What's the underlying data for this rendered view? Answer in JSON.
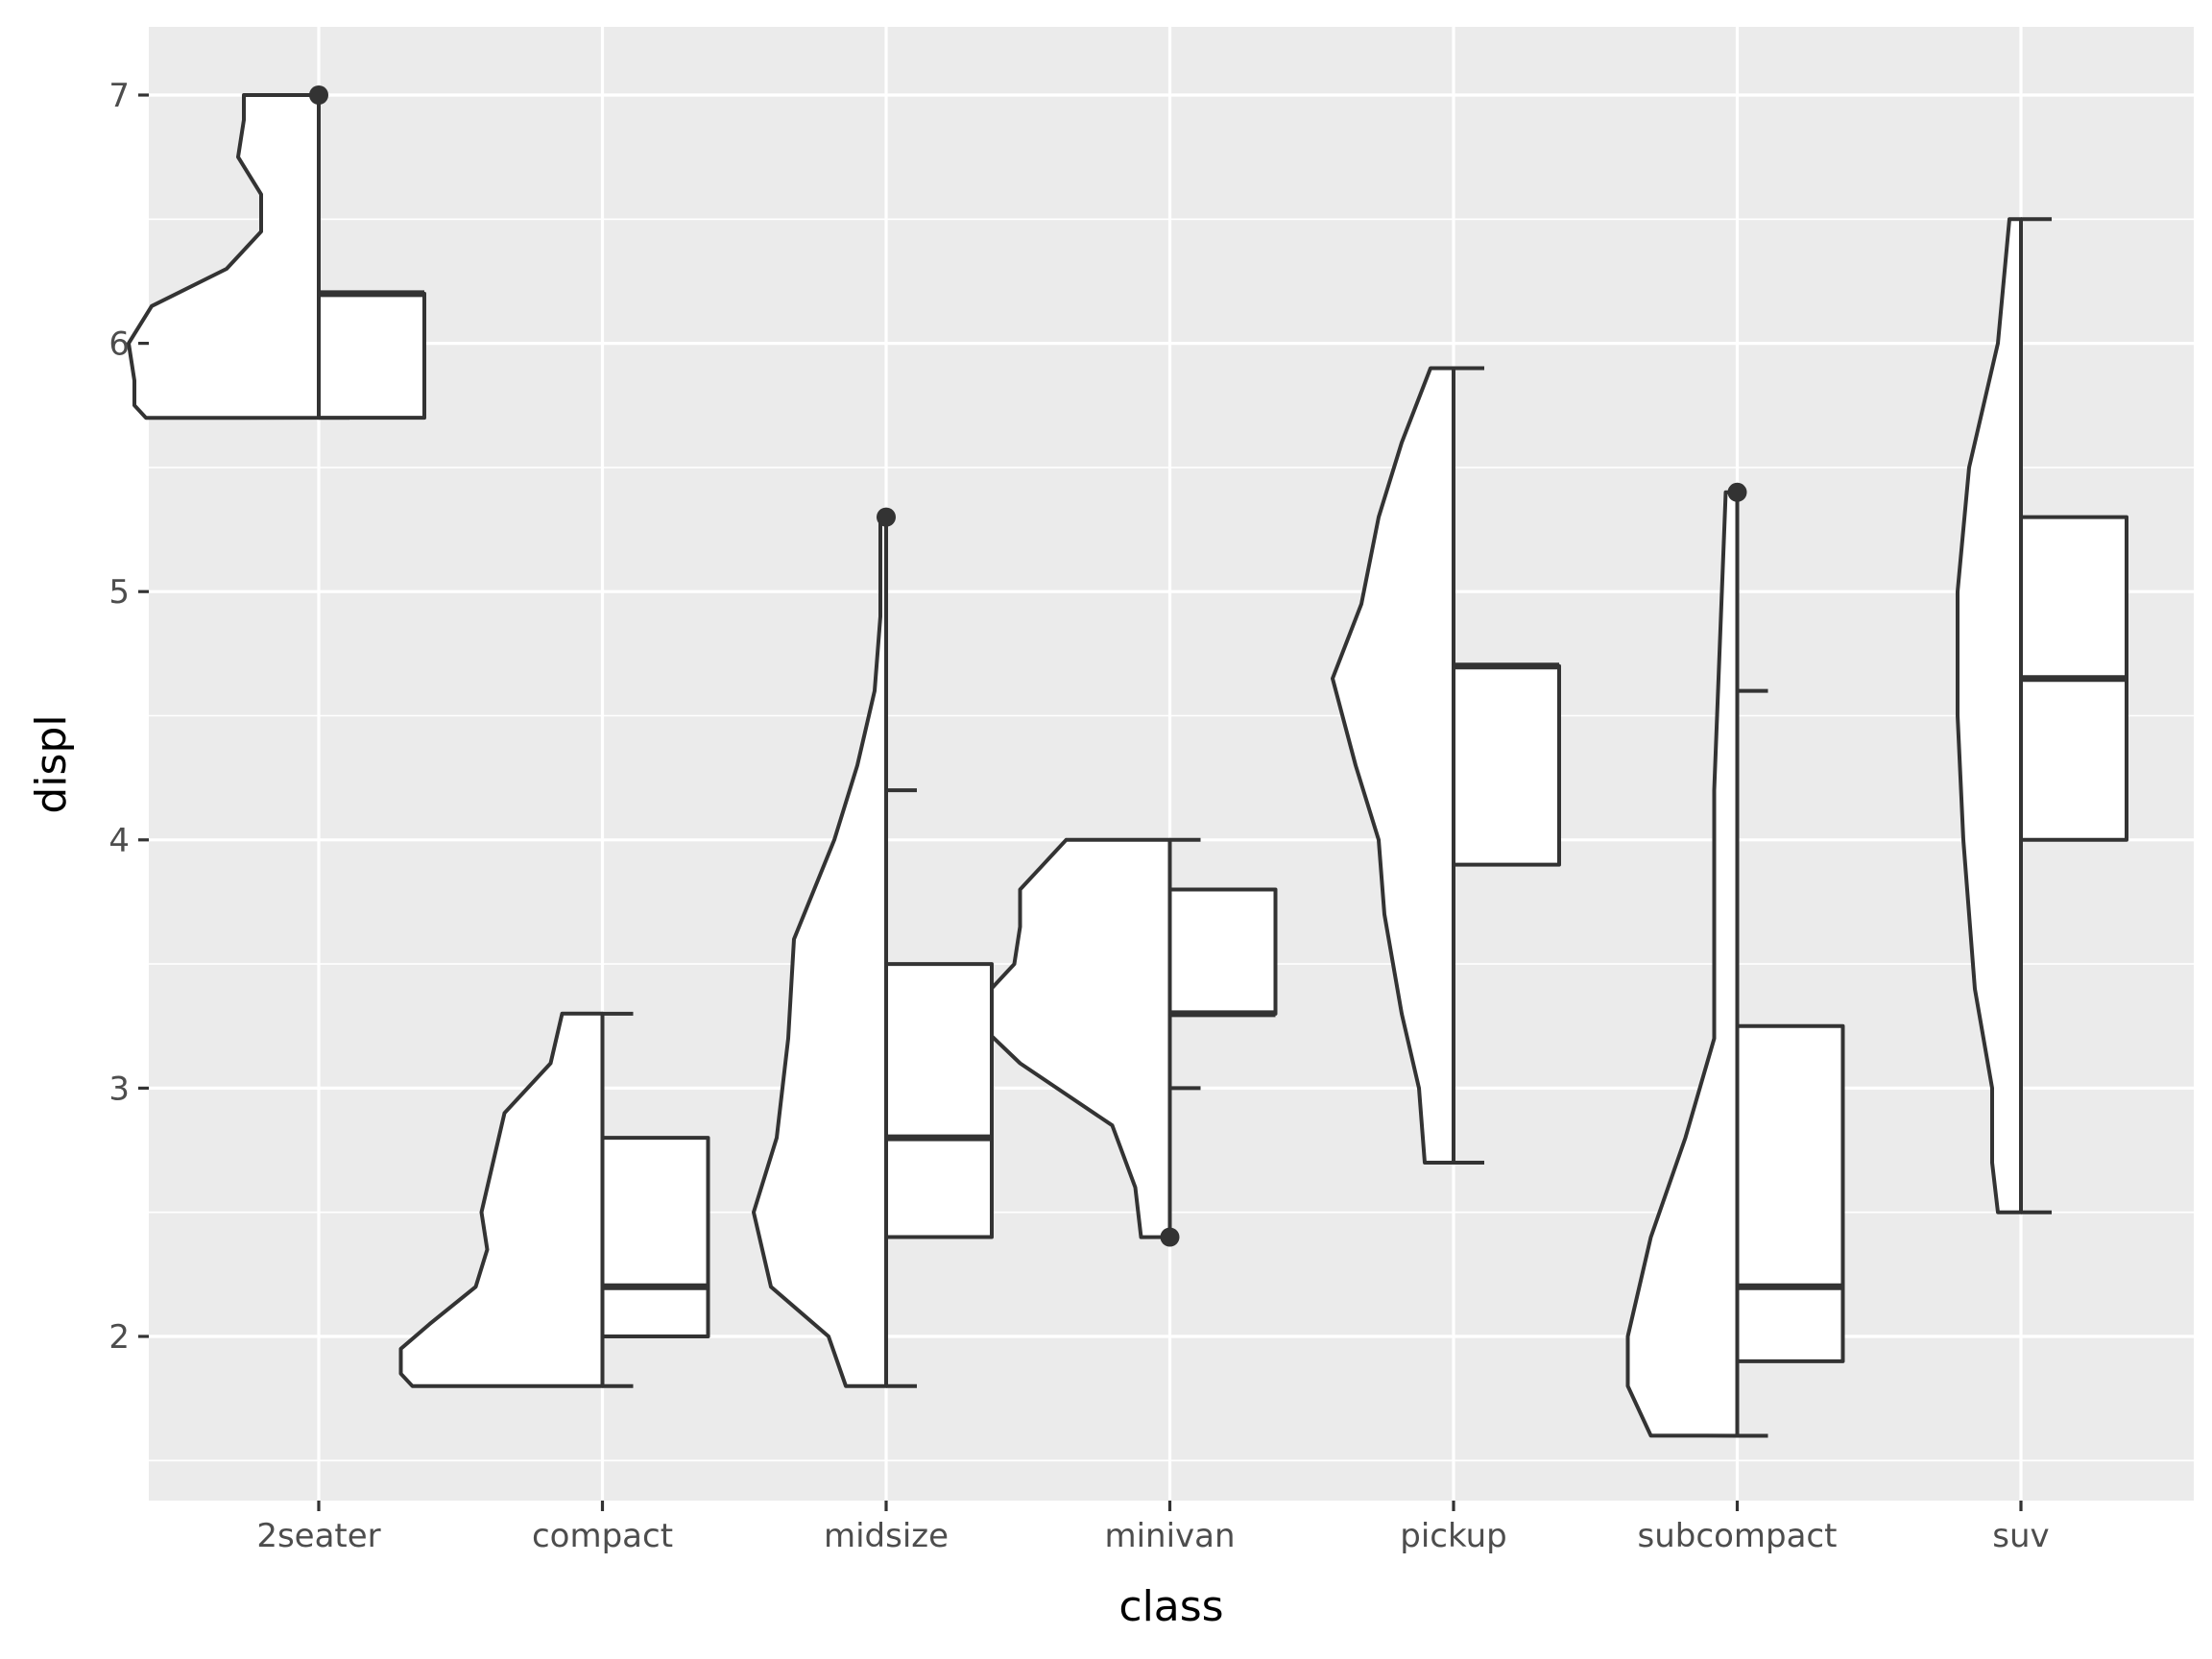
{
  "chart_data": {
    "type": "raincloud",
    "title": "",
    "xlabel": "class",
    "ylabel": "displ",
    "categories": [
      "2seater",
      "compact",
      "midsize",
      "minivan",
      "pickup",
      "subcompact",
      "suv"
    ],
    "ylim": [
      1.44,
      7.3
    ],
    "y_ticks": [
      2,
      3,
      4,
      5,
      6,
      7
    ],
    "y_tick_labels": [
      "2",
      "3",
      "4",
      "5",
      "6",
      "7"
    ],
    "grid": true,
    "background_color": "#ebebeb",
    "line_color": "#333333",
    "fill_color": "#ffffff",
    "boxplots": [
      {
        "category": "2seater",
        "whisker_low": 5.7,
        "q1": 5.7,
        "median": 6.2,
        "q3": 6.2,
        "whisker_high": 6.2,
        "outliers": [
          7.0
        ]
      },
      {
        "category": "compact",
        "whisker_low": 1.8,
        "q1": 2.0,
        "median": 2.2,
        "q3": 2.8,
        "whisker_high": 3.3,
        "outliers": []
      },
      {
        "category": "midsize",
        "whisker_low": 1.8,
        "q1": 2.4,
        "median": 2.8,
        "q3": 3.5,
        "whisker_high": 4.2,
        "outliers": [
          5.3
        ]
      },
      {
        "category": "minivan",
        "whisker_low": 3.0,
        "q1": 3.3,
        "median": 3.3,
        "q3": 3.8,
        "whisker_high": 4.0,
        "outliers": [
          2.4
        ]
      },
      {
        "category": "pickup",
        "whisker_low": 2.7,
        "q1": 3.9,
        "median": 4.7,
        "q3": 4.7,
        "whisker_high": 5.9,
        "outliers": []
      },
      {
        "category": "subcompact",
        "whisker_low": 1.6,
        "q1": 1.9,
        "median": 2.2,
        "q3": 3.25,
        "whisker_high": 4.6,
        "outliers": [
          5.4
        ]
      },
      {
        "category": "suv",
        "whisker_low": 2.5,
        "q1": 4.0,
        "median": 4.65,
        "q3": 5.3,
        "whisker_high": 6.5,
        "outliers": []
      }
    ],
    "half_violins": [
      {
        "category": "2seater",
        "density": [
          [
            5.7,
            0.3
          ],
          [
            5.75,
            0.32
          ],
          [
            5.85,
            0.32
          ],
          [
            6.0,
            0.33
          ],
          [
            6.15,
            0.29
          ],
          [
            6.3,
            0.16
          ],
          [
            6.45,
            0.1
          ],
          [
            6.6,
            0.1
          ],
          [
            6.75,
            0.14
          ],
          [
            6.9,
            0.13
          ],
          [
            7.0,
            0.13
          ]
        ]
      },
      {
        "category": "compact",
        "density": [
          [
            1.8,
            0.33
          ],
          [
            1.85,
            0.35
          ],
          [
            1.95,
            0.35
          ],
          [
            2.05,
            0.3
          ],
          [
            2.2,
            0.22
          ],
          [
            2.35,
            0.2
          ],
          [
            2.5,
            0.21
          ],
          [
            2.7,
            0.19
          ],
          [
            2.9,
            0.17
          ],
          [
            3.1,
            0.09
          ],
          [
            3.3,
            0.07
          ]
        ]
      },
      {
        "category": "midsize",
        "density": [
          [
            1.8,
            0.07
          ],
          [
            2.0,
            0.1
          ],
          [
            2.2,
            0.2
          ],
          [
            2.5,
            0.23
          ],
          [
            2.8,
            0.19
          ],
          [
            3.2,
            0.17
          ],
          [
            3.6,
            0.16
          ],
          [
            4.0,
            0.09
          ],
          [
            4.3,
            0.05
          ],
          [
            4.6,
            0.02
          ],
          [
            4.9,
            0.01
          ],
          [
            5.3,
            0.01
          ]
        ]
      },
      {
        "category": "minivan",
        "density": [
          [
            2.4,
            0.05
          ],
          [
            2.6,
            0.06
          ],
          [
            2.85,
            0.1
          ],
          [
            3.1,
            0.26
          ],
          [
            3.3,
            0.35
          ],
          [
            3.5,
            0.27
          ],
          [
            3.65,
            0.26
          ],
          [
            3.8,
            0.26
          ],
          [
            3.9,
            0.22
          ],
          [
            4.0,
            0.18
          ]
        ]
      },
      {
        "category": "pickup",
        "density": [
          [
            2.7,
            0.05
          ],
          [
            3.0,
            0.06
          ],
          [
            3.3,
            0.09
          ],
          [
            3.7,
            0.12
          ],
          [
            4.0,
            0.13
          ],
          [
            4.3,
            0.17
          ],
          [
            4.65,
            0.21
          ],
          [
            4.95,
            0.16
          ],
          [
            5.3,
            0.13
          ],
          [
            5.6,
            0.09
          ],
          [
            5.9,
            0.04
          ]
        ]
      },
      {
        "category": "subcompact",
        "density": [
          [
            1.6,
            0.15
          ],
          [
            1.8,
            0.19
          ],
          [
            2.0,
            0.19
          ],
          [
            2.4,
            0.15
          ],
          [
            2.8,
            0.09
          ],
          [
            3.2,
            0.04
          ],
          [
            3.6,
            0.04
          ],
          [
            4.2,
            0.04
          ],
          [
            4.8,
            0.03
          ],
          [
            5.4,
            0.02
          ]
        ]
      },
      {
        "category": "suv",
        "density": [
          [
            2.5,
            0.04
          ],
          [
            2.7,
            0.05
          ],
          [
            3.0,
            0.05
          ],
          [
            3.4,
            0.08
          ],
          [
            4.0,
            0.1
          ],
          [
            4.5,
            0.11
          ],
          [
            5.0,
            0.11
          ],
          [
            5.5,
            0.09
          ],
          [
            6.0,
            0.04
          ],
          [
            6.5,
            0.02
          ]
        ]
      }
    ]
  }
}
